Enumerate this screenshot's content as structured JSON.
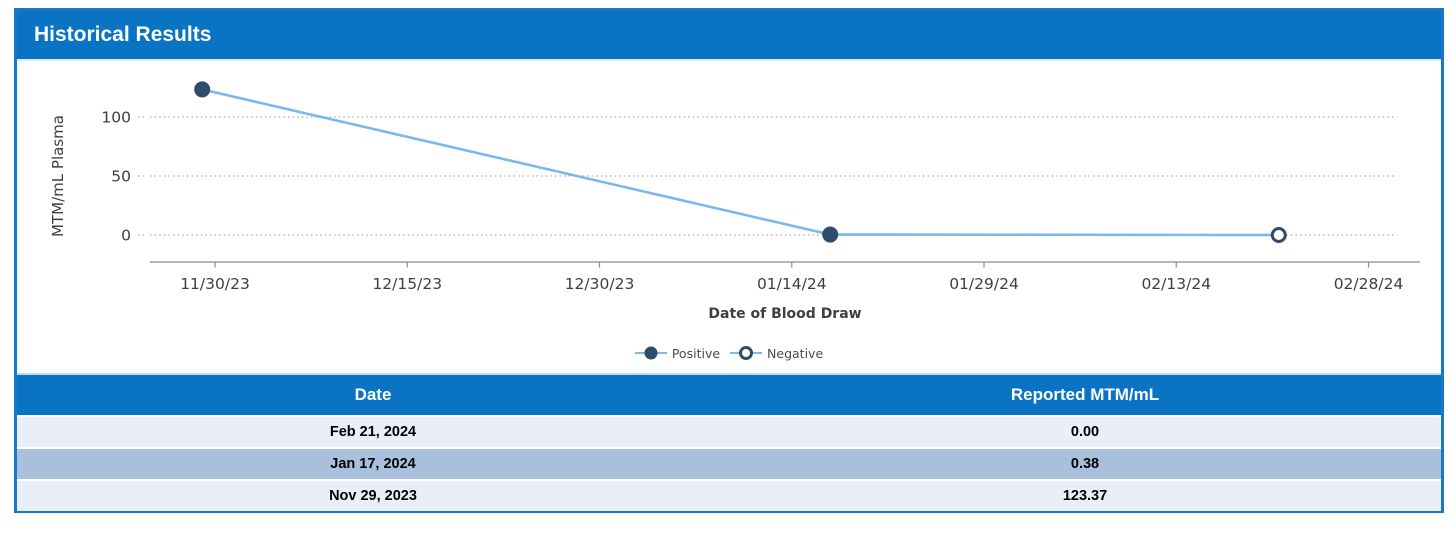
{
  "panel": {
    "title": "Historical Results"
  },
  "colors": {
    "accent_blue": "#0a74c4",
    "panel_border": "#1878c8",
    "line_color": "#7db8ea",
    "marker_color": "#2e4d68",
    "grid_color": "#9a9a9a",
    "axis_color": "#8c8c8c",
    "row_light": "#e9eef8",
    "row_mid": "#a9c0dd"
  },
  "chart_data": {
    "type": "line",
    "title": "",
    "xlabel": "Date of Blood Draw",
    "ylabel": "MTM/mL Plasma",
    "x_ticks": [
      {
        "label": "11/30/23",
        "day": 0
      },
      {
        "label": "12/15/23",
        "day": 15
      },
      {
        "label": "12/30/23",
        "day": 30
      },
      {
        "label": "01/14/24",
        "day": 45
      },
      {
        "label": "01/29/24",
        "day": 60
      },
      {
        "label": "02/13/24",
        "day": 75
      },
      {
        "label": "02/28/24",
        "day": 90
      }
    ],
    "y_ticks": [
      0,
      50,
      100
    ],
    "ylim": [
      -22,
      135
    ],
    "grid": "dotted horizontal",
    "legend_position": "bottom center",
    "series": [
      {
        "name": "Positive",
        "marker": "filled",
        "points": [
          {
            "date": "Nov 29, 2023",
            "day": -1,
            "value": 123.37
          },
          {
            "date": "Jan 17, 2024",
            "day": 48,
            "value": 0.38
          }
        ]
      },
      {
        "name": "Negative",
        "marker": "open",
        "points": [
          {
            "date": "Feb 21, 2024",
            "day": 83,
            "value": 0.0
          }
        ]
      }
    ]
  },
  "legend": [
    {
      "label": "Positive",
      "marker": "filled"
    },
    {
      "label": "Negative",
      "marker": "open"
    }
  ],
  "table": {
    "headers": [
      "Date",
      "Reported MTM/mL"
    ],
    "rows": [
      [
        "Feb 21, 2024",
        "0.00"
      ],
      [
        "Jan 17, 2024",
        "0.38"
      ],
      [
        "Nov 29, 2023",
        "123.37"
      ]
    ]
  }
}
